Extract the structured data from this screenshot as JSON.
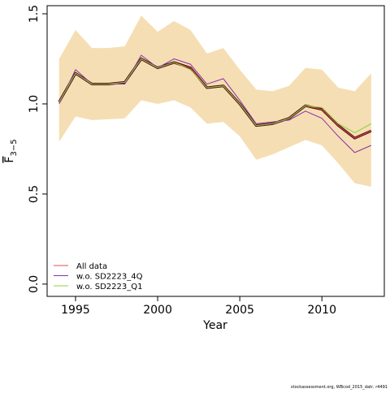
{
  "chart_data": {
    "type": "line",
    "xlabel": "Year",
    "ylabel": "F",
    "ylabel_subscript": "3−5",
    "footnote": "stockassessment.org, WBcod_2015_datr, r4491",
    "x": [
      1994,
      1995,
      1996,
      1997,
      1998,
      1999,
      2000,
      2001,
      2002,
      2003,
      2004,
      2005,
      2006,
      2007,
      2008,
      2009,
      2010,
      2011,
      2012,
      2013
    ],
    "band": {
      "color": "#f5deb3",
      "lower": [
        0.79,
        0.93,
        0.91,
        0.915,
        0.92,
        1.02,
        1.0,
        1.02,
        0.98,
        0.89,
        0.9,
        0.82,
        0.69,
        0.72,
        0.76,
        0.8,
        0.77,
        0.67,
        0.56,
        0.54
      ],
      "upper": [
        1.25,
        1.41,
        1.31,
        1.31,
        1.32,
        1.49,
        1.4,
        1.46,
        1.41,
        1.28,
        1.31,
        1.19,
        1.08,
        1.07,
        1.1,
        1.2,
        1.19,
        1.09,
        1.07,
        1.17
      ]
    },
    "estimate_color": "#4a0a14",
    "series": [
      {
        "name": "All data",
        "color": "#e0504a",
        "values": [
          1.01,
          1.17,
          1.11,
          1.11,
          1.12,
          1.25,
          1.2,
          1.23,
          1.2,
          1.09,
          1.1,
          1.0,
          0.88,
          0.89,
          0.92,
          0.99,
          0.97,
          0.88,
          0.81,
          0.85
        ]
      },
      {
        "name": "w.o. SD2223_4Q",
        "color": "#8b2fa8",
        "values": [
          1.0,
          1.19,
          1.11,
          1.11,
          1.11,
          1.27,
          1.2,
          1.25,
          1.22,
          1.11,
          1.14,
          1.02,
          0.89,
          0.9,
          0.91,
          0.96,
          0.92,
          0.82,
          0.73,
          0.77
        ]
      },
      {
        "name": "w.o. SD2223_Q1",
        "color": "#8fd13f",
        "values": [
          1.01,
          1.17,
          1.11,
          1.11,
          1.12,
          1.25,
          1.2,
          1.23,
          1.19,
          1.09,
          1.1,
          1.0,
          0.88,
          0.89,
          0.92,
          0.99,
          0.98,
          0.89,
          0.84,
          0.89
        ]
      }
    ],
    "xlim": [
      1993.27,
      2013.8
    ],
    "ylim": [
      -0.068,
      1.545
    ],
    "xticks": [
      1995,
      2000,
      2005,
      2010
    ],
    "yticks": [
      {
        "value": 0,
        "label": "0.0"
      },
      0.5,
      {
        "value": 1,
        "label": "1.0"
      },
      1.5
    ],
    "legend": "bottom-left"
  }
}
